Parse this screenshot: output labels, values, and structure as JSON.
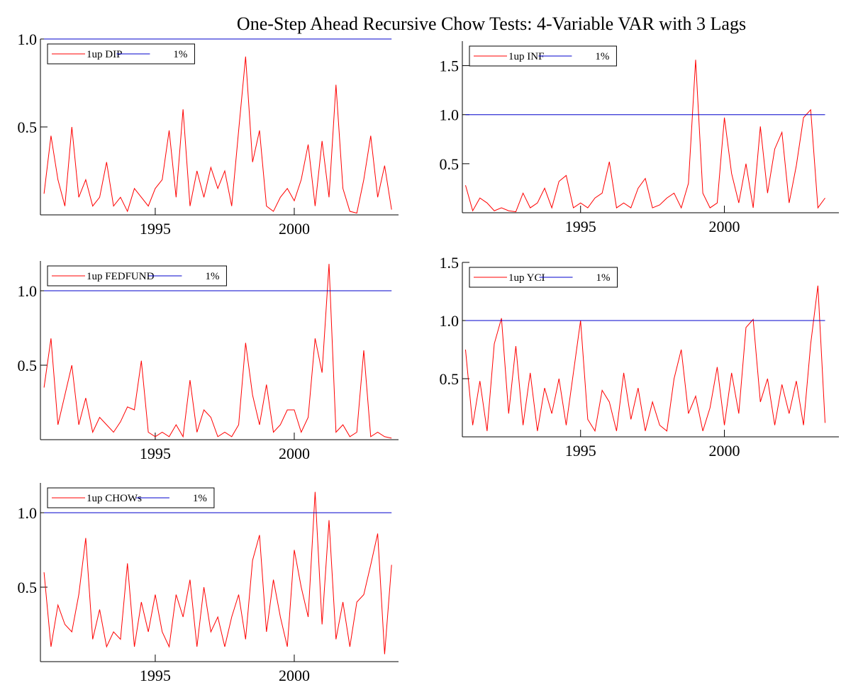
{
  "title": "One-Step Ahead Recursive Chow Tests: 4-Variable VAR with 3 Lags",
  "chart_data": [
    {
      "type": "line",
      "legend": "upper left",
      "x": [
        1991,
        1991.25,
        1991.5,
        1991.75,
        1992,
        1992.25,
        1992.5,
        1992.75,
        1993,
        1993.25,
        1993.5,
        1993.75,
        1994,
        1994.25,
        1994.5,
        1994.75,
        1995,
        1995.25,
        1995.5,
        1995.75,
        1996,
        1996.25,
        1996.5,
        1996.75,
        1997,
        1997.25,
        1997.5,
        1997.75,
        1998,
        1998.25,
        1998.5,
        1998.75,
        1999,
        1999.25,
        1999.5,
        1999.75,
        2000,
        2000.25,
        2000.5,
        2000.75,
        2001,
        2001.25,
        2001.5,
        2001.75,
        2002,
        2002.25,
        2002.5,
        2002.75,
        2003,
        2003.25,
        2003.5
      ],
      "series": [
        {
          "name": "1up DIP",
          "color": "#ff0000",
          "values": [
            0.12,
            0.45,
            0.2,
            0.05,
            0.5,
            0.1,
            0.2,
            0.05,
            0.1,
            0.3,
            0.05,
            0.1,
            0.02,
            0.15,
            0.1,
            0.05,
            0.15,
            0.2,
            0.48,
            0.1,
            0.6,
            0.05,
            0.25,
            0.1,
            0.27,
            0.15,
            0.25,
            0.05,
            0.48,
            0.9,
            0.3,
            0.48,
            0.05,
            0.02,
            0.1,
            0.15,
            0.08,
            0.2,
            0.4,
            0.05,
            0.42,
            0.1,
            0.74,
            0.15,
            0.02,
            0.01,
            0.2,
            0.45,
            0.1,
            0.28,
            0.03
          ]
        },
        {
          "name": "1%",
          "color": "#0000cc",
          "values": [
            1,
            1,
            1,
            1,
            1,
            1,
            1,
            1,
            1,
            1,
            1,
            1,
            1,
            1,
            1,
            1,
            1,
            1,
            1,
            1,
            1,
            1,
            1,
            1,
            1,
            1,
            1,
            1,
            1,
            1,
            1,
            1,
            1,
            1,
            1,
            1,
            1,
            1,
            1,
            1,
            1,
            1,
            1,
            1,
            1,
            1,
            1,
            1,
            1,
            1,
            1
          ]
        }
      ],
      "xlim": [
        1990.87,
        2003.75
      ],
      "xticks": [
        1995,
        2000
      ],
      "ylim": [
        0,
        1
      ],
      "yticks": [
        0.5,
        {
          "value": 1,
          "label": "1.0"
        }
      ]
    },
    {
      "type": "line",
      "legend": "upper left",
      "x": [
        1991,
        1991.25,
        1991.5,
        1991.75,
        1992,
        1992.25,
        1992.5,
        1992.75,
        1993,
        1993.25,
        1993.5,
        1993.75,
        1994,
        1994.25,
        1994.5,
        1994.75,
        1995,
        1995.25,
        1995.5,
        1995.75,
        1996,
        1996.25,
        1996.5,
        1996.75,
        1997,
        1997.25,
        1997.5,
        1997.75,
        1998,
        1998.25,
        1998.5,
        1998.75,
        1999,
        1999.25,
        1999.5,
        1999.75,
        2000,
        2000.25,
        2000.5,
        2000.75,
        2001,
        2001.25,
        2001.5,
        2001.75,
        2002,
        2002.25,
        2002.5,
        2002.75,
        2003,
        2003.25,
        2003.5
      ],
      "series": [
        {
          "name": "1up INF",
          "color": "#ff0000",
          "values": [
            0.28,
            0.02,
            0.15,
            0.1,
            0.02,
            0.05,
            0.02,
            0.01,
            0.2,
            0.05,
            0.1,
            0.25,
            0.05,
            0.32,
            0.38,
            0.05,
            0.1,
            0.05,
            0.15,
            0.2,
            0.52,
            0.05,
            0.1,
            0.05,
            0.25,
            0.35,
            0.05,
            0.08,
            0.15,
            0.2,
            0.05,
            0.3,
            1.56,
            0.2,
            0.05,
            0.1,
            0.97,
            0.4,
            0.1,
            0.5,
            0.05,
            0.88,
            0.2,
            0.65,
            0.82,
            0.1,
            0.48,
            0.97,
            1.05,
            0.05,
            0.15
          ]
        },
        {
          "name": "1%",
          "color": "#0000cc",
          "values": [
            1,
            1,
            1,
            1,
            1,
            1,
            1,
            1,
            1,
            1,
            1,
            1,
            1,
            1,
            1,
            1,
            1,
            1,
            1,
            1,
            1,
            1,
            1,
            1,
            1,
            1,
            1,
            1,
            1,
            1,
            1,
            1,
            1,
            1,
            1,
            1,
            1,
            1,
            1,
            1,
            1,
            1,
            1,
            1,
            1,
            1,
            1,
            1,
            1,
            1,
            1
          ]
        }
      ],
      "xlim": [
        1990.89,
        2003.98
      ],
      "xticks": [
        1995,
        2000
      ],
      "ylim": [
        0,
        1.75
      ],
      "yticks": [
        0.5,
        {
          "value": 1,
          "label": "1.0"
        },
        1.5
      ]
    },
    {
      "type": "line",
      "legend": "upper left",
      "x": [
        1991,
        1991.25,
        1991.5,
        1991.75,
        1992,
        1992.25,
        1992.5,
        1992.75,
        1993,
        1993.25,
        1993.5,
        1993.75,
        1994,
        1994.25,
        1994.5,
        1994.75,
        1995,
        1995.25,
        1995.5,
        1995.75,
        1996,
        1996.25,
        1996.5,
        1996.75,
        1997,
        1997.25,
        1997.5,
        1997.75,
        1998,
        1998.25,
        1998.5,
        1998.75,
        1999,
        1999.25,
        1999.5,
        1999.75,
        2000,
        2000.25,
        2000.5,
        2000.75,
        2001,
        2001.25,
        2001.5,
        2001.75,
        2002,
        2002.25,
        2002.5,
        2002.75,
        2003,
        2003.25,
        2003.5
      ],
      "series": [
        {
          "name": "1up FEDFUND",
          "color": "#ff0000",
          "values": [
            0.35,
            0.68,
            0.1,
            0.3,
            0.5,
            0.1,
            0.28,
            0.05,
            0.15,
            0.1,
            0.05,
            0.12,
            0.22,
            0.2,
            0.53,
            0.05,
            0.02,
            0.05,
            0.02,
            0.1,
            0.02,
            0.4,
            0.05,
            0.2,
            0.15,
            0.02,
            0.05,
            0.02,
            0.1,
            0.65,
            0.3,
            0.1,
            0.37,
            0.05,
            0.1,
            0.2,
            0.2,
            0.05,
            0.15,
            0.68,
            0.45,
            1.18,
            0.05,
            0.1,
            0.02,
            0.05,
            0.6,
            0.02,
            0.05,
            0.02,
            0.01
          ]
        },
        {
          "name": "1%",
          "color": "#0000cc",
          "values": [
            1,
            1,
            1,
            1,
            1,
            1,
            1,
            1,
            1,
            1,
            1,
            1,
            1,
            1,
            1,
            1,
            1,
            1,
            1,
            1,
            1,
            1,
            1,
            1,
            1,
            1,
            1,
            1,
            1,
            1,
            1,
            1,
            1,
            1,
            1,
            1,
            1,
            1,
            1,
            1,
            1,
            1,
            1,
            1,
            1,
            1,
            1,
            1,
            1,
            1,
            1
          ]
        }
      ],
      "xlim": [
        1990.87,
        2003.75
      ],
      "xticks": [
        1995,
        2000
      ],
      "ylim": [
        0,
        1.2
      ],
      "yticks": [
        0.5,
        {
          "value": 1,
          "label": "1.0"
        }
      ]
    },
    {
      "type": "line",
      "legend": "upper left",
      "x": [
        1991,
        1991.25,
        1991.5,
        1991.75,
        1992,
        1992.25,
        1992.5,
        1992.75,
        1993,
        1993.25,
        1993.5,
        1993.75,
        1994,
        1994.25,
        1994.5,
        1994.75,
        1995,
        1995.25,
        1995.5,
        1995.75,
        1996,
        1996.25,
        1996.5,
        1996.75,
        1997,
        1997.25,
        1997.5,
        1997.75,
        1998,
        1998.25,
        1998.5,
        1998.75,
        1999,
        1999.25,
        1999.5,
        1999.75,
        2000,
        2000.25,
        2000.5,
        2000.75,
        2001,
        2001.25,
        2001.5,
        2001.75,
        2002,
        2002.25,
        2002.5,
        2002.75,
        2003,
        2003.25,
        2003.5
      ],
      "series": [
        {
          "name": "1up YCI",
          "color": "#ff0000",
          "values": [
            0.75,
            0.1,
            0.48,
            0.05,
            0.8,
            1.02,
            0.2,
            0.78,
            0.1,
            0.55,
            0.05,
            0.42,
            0.2,
            0.5,
            0.1,
            0.55,
            1.0,
            0.15,
            0.05,
            0.4,
            0.3,
            0.05,
            0.55,
            0.15,
            0.42,
            0.05,
            0.3,
            0.1,
            0.05,
            0.5,
            0.75,
            0.2,
            0.35,
            0.05,
            0.25,
            0.6,
            0.1,
            0.55,
            0.2,
            0.94,
            1.01,
            0.3,
            0.5,
            0.1,
            0.45,
            0.2,
            0.48,
            0.1,
            0.8,
            1.3,
            0.12
          ]
        },
        {
          "name": "1%",
          "color": "#0000cc",
          "values": [
            1,
            1,
            1,
            1,
            1,
            1,
            1,
            1,
            1,
            1,
            1,
            1,
            1,
            1,
            1,
            1,
            1,
            1,
            1,
            1,
            1,
            1,
            1,
            1,
            1,
            1,
            1,
            1,
            1,
            1,
            1,
            1,
            1,
            1,
            1,
            1,
            1,
            1,
            1,
            1,
            1,
            1,
            1,
            1,
            1,
            1,
            1,
            1,
            1,
            1,
            1
          ]
        }
      ],
      "xlim": [
        1990.89,
        2003.98
      ],
      "xticks": [
        1995,
        2000
      ],
      "ylim": [
        0,
        1.5
      ],
      "yticks": [
        0.5,
        {
          "value": 1,
          "label": "1.0"
        },
        1.5
      ]
    },
    {
      "type": "line",
      "legend": "upper left",
      "x": [
        1991,
        1991.25,
        1991.5,
        1991.75,
        1992,
        1992.25,
        1992.5,
        1992.75,
        1993,
        1993.25,
        1993.5,
        1993.75,
        1994,
        1994.25,
        1994.5,
        1994.75,
        1995,
        1995.25,
        1995.5,
        1995.75,
        1996,
        1996.25,
        1996.5,
        1996.75,
        1997,
        1997.25,
        1997.5,
        1997.75,
        1998,
        1998.25,
        1998.5,
        1998.75,
        1999,
        1999.25,
        1999.5,
        1999.75,
        2000,
        2000.25,
        2000.5,
        2000.75,
        2001,
        2001.25,
        2001.5,
        2001.75,
        2002,
        2002.25,
        2002.5,
        2002.75,
        2003,
        2003.25,
        2003.5
      ],
      "series": [
        {
          "name": "1up CHOWs",
          "color": "#ff0000",
          "values": [
            0.6,
            0.1,
            0.38,
            0.25,
            0.2,
            0.45,
            0.83,
            0.15,
            0.35,
            0.1,
            0.2,
            0.15,
            0.66,
            0.1,
            0.4,
            0.2,
            0.45,
            0.2,
            0.1,
            0.45,
            0.3,
            0.55,
            0.1,
            0.5,
            0.2,
            0.3,
            0.1,
            0.3,
            0.45,
            0.15,
            0.68,
            0.85,
            0.2,
            0.55,
            0.3,
            0.1,
            0.75,
            0.5,
            0.3,
            1.14,
            0.25,
            0.95,
            0.15,
            0.4,
            0.1,
            0.4,
            0.45,
            0.65,
            0.86,
            0.05,
            0.65
          ]
        },
        {
          "name": "1%",
          "color": "#0000cc",
          "values": [
            1,
            1,
            1,
            1,
            1,
            1,
            1,
            1,
            1,
            1,
            1,
            1,
            1,
            1,
            1,
            1,
            1,
            1,
            1,
            1,
            1,
            1,
            1,
            1,
            1,
            1,
            1,
            1,
            1,
            1,
            1,
            1,
            1,
            1,
            1,
            1,
            1,
            1,
            1,
            1,
            1,
            1,
            1,
            1,
            1,
            1,
            1,
            1,
            1,
            1,
            1
          ]
        }
      ],
      "xlim": [
        1990.87,
        2003.75
      ],
      "xticks": [
        1995,
        2000
      ],
      "ylim": [
        0,
        1.2
      ],
      "yticks": [
        0.5,
        {
          "value": 1,
          "label": "1.0"
        }
      ]
    }
  ]
}
